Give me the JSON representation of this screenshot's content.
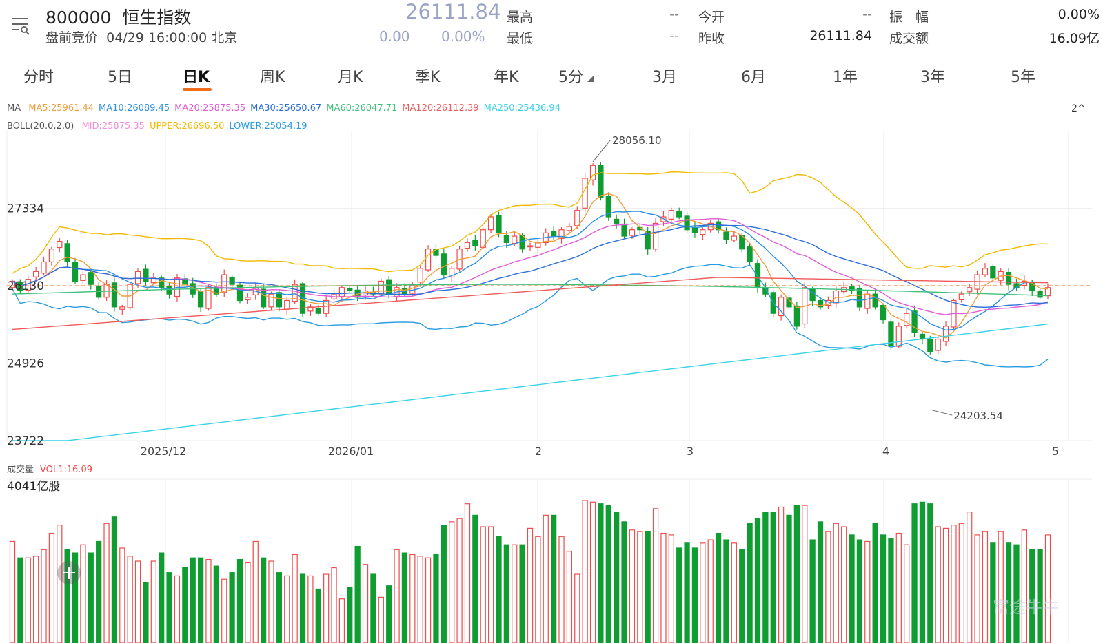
{
  "header": {
    "code": "800000",
    "name": "恒生指数",
    "status": "盘前竞价",
    "time": "04/29 16:00:00 北京",
    "price": "26111.84",
    "change": "0.00",
    "change_pct": "0.00%",
    "stats": [
      {
        "label": "最高",
        "value": "--"
      },
      {
        "label": "今开",
        "value": "--"
      },
      {
        "label": "振　幅",
        "value": "0.00%"
      },
      {
        "label": "最低",
        "value": "--"
      },
      {
        "label": "昨收",
        "value": "26111.84"
      },
      {
        "label": "成交额",
        "value": "16.09亿"
      }
    ]
  },
  "tabs": [
    "分时",
    "5日",
    "日K",
    "周K",
    "月K",
    "季K",
    "年K",
    "5分",
    "3月",
    "6月",
    "1年",
    "3年",
    "5年"
  ],
  "active_tab": "日K",
  "indicators": {
    "ma_title": "MA",
    "ma": [
      {
        "label": "MA5:25961.44",
        "color": "#f39c3a"
      },
      {
        "label": "MA10:26089.45",
        "color": "#2a8fe0"
      },
      {
        "label": "MA20:25875.35",
        "color": "#e05bd6"
      },
      {
        "label": "MA30:25650.67",
        "color": "#2d6fd8"
      },
      {
        "label": "MA60:26047.71",
        "color": "#3ec07b"
      },
      {
        "label": "MA120:26112.39",
        "color": "#ef5a5a"
      },
      {
        "label": "MA250:25436.94",
        "color": "#39d4e6"
      }
    ],
    "boll_title": "BOLL(20.0,2.0)",
    "boll": [
      {
        "label": "MID:25875.35",
        "color": "#f08fd8"
      },
      {
        "label": "UPPER:26696.50",
        "color": "#f2b900"
      },
      {
        "label": "LOWER:25054.19",
        "color": "#2a9be0"
      }
    ],
    "collapse": "2^"
  },
  "chart_data": {
    "type": "candlestick",
    "y_ticks": [
      "27334",
      "26130",
      "24926",
      "23722"
    ],
    "ylim": [
      23722,
      28538
    ],
    "x_ticks": [
      "2025/12",
      "2026/01",
      "2",
      "3",
      "4",
      "5"
    ],
    "last_price": "26130",
    "high_label": "28056.10",
    "low_label": "24203.54",
    "volume_title": "成交量",
    "volume_label": "VOL1:16.09",
    "volume_max_label": "4041亿股",
    "colors": {
      "up": "#f04a4a",
      "down": "#0f9d32",
      "ref": "#f26c1d"
    },
    "closes": [
      26200,
      26050,
      26230,
      26350,
      26500,
      26700,
      26820,
      26500,
      26200,
      26300,
      26150,
      25950,
      26150,
      25800,
      25800,
      26150,
      26350,
      26200,
      26250,
      26100,
      26000,
      26250,
      26150,
      26000,
      25800,
      26100,
      26000,
      26300,
      26150,
      25900,
      25950,
      26100,
      25800,
      26000,
      25800,
      25900,
      26150,
      25700,
      25800,
      25700,
      25900,
      26000,
      26100,
      26050,
      25950,
      26050,
      26000,
      26200,
      26000,
      26100,
      26000,
      26150,
      26400,
      26700,
      26600,
      26300,
      26400,
      26700,
      26800,
      26750,
      27000,
      27200,
      26950,
      26800,
      26900,
      26700,
      26750,
      26800,
      26950,
      26900,
      27000,
      27050,
      27300,
      27800,
      28000,
      27500,
      27200,
      27100,
      26900,
      27000,
      27000,
      26700,
      27100,
      27200,
      27300,
      27200,
      27000,
      26950,
      27000,
      27100,
      27000,
      26850,
      26900,
      26700,
      26500,
      26100,
      26000,
      25700,
      25950,
      25800,
      25500,
      26100,
      25900,
      25800,
      25900,
      26050,
      26100,
      26050,
      25800,
      26000,
      25800,
      25600,
      25200,
      25500,
      25700,
      25400,
      25300,
      25100,
      25300,
      25500,
      25900,
      26000,
      26100,
      26300,
      26400,
      26250,
      26350,
      26150,
      26100,
      26200,
      26050,
      25950,
      26100
    ],
    "volume": [
      0.62,
      0.52,
      0.52,
      0.53,
      0.57,
      0.67,
      0.72,
      0.57,
      0.55,
      0.6,
      0.55,
      0.62,
      0.73,
      0.77,
      0.58,
      0.53,
      0.5,
      0.37,
      0.5,
      0.55,
      0.43,
      0.41,
      0.46,
      0.52,
      0.52,
      0.51,
      0.47,
      0.39,
      0.43,
      0.51,
      0.49,
      0.62,
      0.52,
      0.5,
      0.43,
      0.41,
      0.54,
      0.42,
      0.41,
      0.33,
      0.42,
      0.46,
      0.27,
      0.34,
      0.59,
      0.48,
      0.42,
      0.28,
      0.35,
      0.57,
      0.55,
      0.54,
      0.53,
      0.52,
      0.54,
      0.72,
      0.74,
      0.76,
      0.85,
      0.78,
      0.71,
      0.71,
      0.65,
      0.6,
      0.6,
      0.6,
      0.7,
      0.65,
      0.78,
      0.78,
      0.65,
      0.56,
      0.42,
      0.87,
      0.86,
      0.85,
      0.84,
      0.8,
      0.74,
      0.69,
      0.68,
      0.68,
      0.82,
      0.67,
      0.66,
      0.58,
      0.61,
      0.58,
      0.61,
      0.63,
      0.67,
      0.63,
      0.61,
      0.57,
      0.73,
      0.76,
      0.8,
      0.8,
      0.83,
      0.78,
      0.84,
      0.84,
      0.63,
      0.74,
      0.68,
      0.73,
      0.71,
      0.66,
      0.63,
      0.62,
      0.73,
      0.66,
      0.64,
      0.67,
      0.6,
      0.85,
      0.86,
      0.85,
      0.71,
      0.7,
      0.72,
      0.73,
      0.8,
      0.66,
      0.68,
      0.61,
      0.68,
      0.61,
      0.6,
      0.69,
      0.57,
      0.57,
      0.66
    ]
  },
  "watermark": "富途牛牛"
}
